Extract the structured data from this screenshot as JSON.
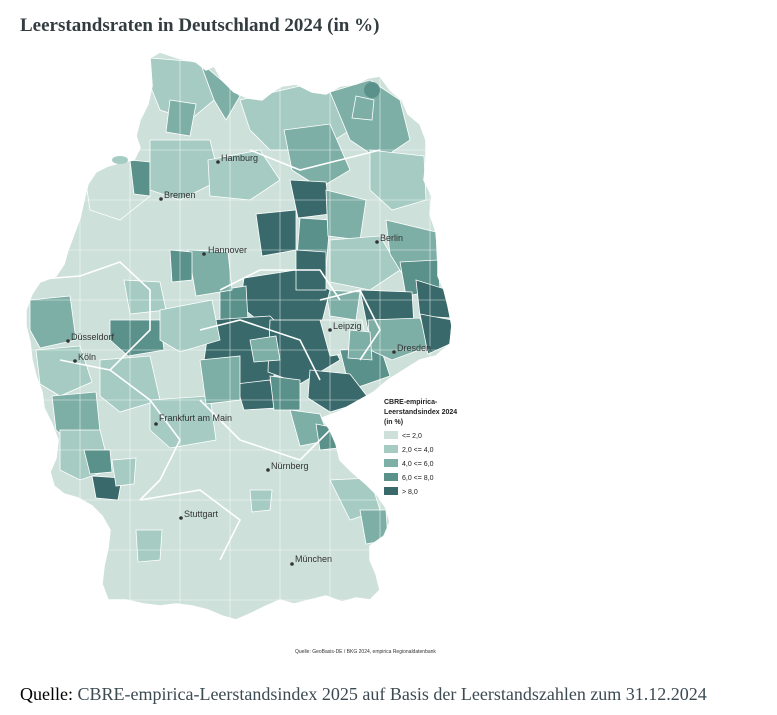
{
  "title": "Leerstandsraten in Deutschland 2024 (in %)",
  "colors": {
    "c1": "#cde0da",
    "c2": "#a5cbc2",
    "c3": "#7dafa6",
    "c4": "#5b918b",
    "c5": "#39696a",
    "boundary": "#ffffff"
  },
  "map": {
    "cities": [
      {
        "name": "Hamburg"
      },
      {
        "name": "Bremen"
      },
      {
        "name": "Berlin"
      },
      {
        "name": "Hannover"
      },
      {
        "name": "Düsseldorf"
      },
      {
        "name": "Köln"
      },
      {
        "name": "Leipzig"
      },
      {
        "name": "Dresden"
      },
      {
        "name": "Frankfurt am Main"
      },
      {
        "name": "Nürnberg"
      },
      {
        "name": "Stuttgart"
      },
      {
        "name": "München"
      }
    ],
    "legend": {
      "title_lines": [
        "CBRE-empirica-",
        "Leerstandsindex 2024",
        "(in %)"
      ],
      "items": [
        {
          "label": "<= 2,0",
          "color": "#cde0da"
        },
        {
          "label": "2,0 <= 4,0",
          "color": "#a5cbc2"
        },
        {
          "label": "4,0 <= 6,0",
          "color": "#7dafa6"
        },
        {
          "label": "6,0 <= 8,0",
          "color": "#5b918b"
        },
        {
          "label": "> 8,0",
          "color": "#39696a"
        }
      ]
    },
    "source": "Quelle: GeoBasis-DE / BKG 2024, empirica Regionaldatenbank"
  },
  "footer": {
    "label": "Quelle:",
    "text": "CBRE-empirica-Leerstandsindex 2025 auf Basis der Leerstandszahlen zum 31.12.2024"
  }
}
